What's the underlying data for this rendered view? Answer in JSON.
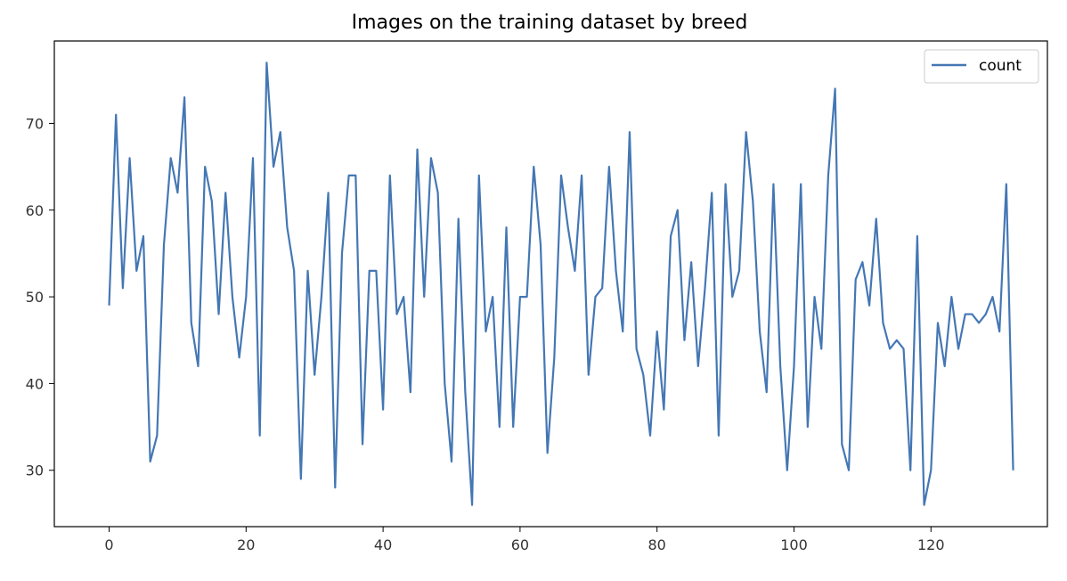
{
  "chart_data": {
    "type": "line",
    "title": "Images on the training dataset by breed",
    "xlabel": "",
    "ylabel": "",
    "xlim": [
      -8,
      137
    ],
    "ylim": [
      23.5,
      79.5
    ],
    "xticks": [
      0,
      20,
      40,
      60,
      80,
      100,
      120
    ],
    "yticks": [
      30,
      40,
      50,
      60,
      70
    ],
    "grid": false,
    "legend": "top-right",
    "series": [
      {
        "name": "count",
        "color": "#4477b4",
        "x": [
          0,
          1,
          2,
          3,
          4,
          5,
          6,
          7,
          8,
          9,
          10,
          11,
          12,
          13,
          14,
          15,
          16,
          17,
          18,
          19,
          20,
          21,
          22,
          23,
          24,
          25,
          26,
          27,
          28,
          29,
          30,
          31,
          32,
          33,
          34,
          35,
          36,
          37,
          38,
          39,
          40,
          41,
          42,
          43,
          44,
          45,
          46,
          47,
          48,
          49,
          50,
          51,
          52,
          53,
          54,
          55,
          56,
          57,
          58,
          59,
          60,
          61,
          62,
          63,
          64,
          65,
          66,
          67,
          68,
          69,
          70,
          71,
          72,
          73,
          74,
          75,
          76,
          77,
          78,
          79,
          80,
          81,
          82,
          83,
          84,
          85,
          86,
          87,
          88,
          89,
          90,
          91,
          92,
          93,
          94,
          95,
          96,
          97,
          98,
          99,
          100,
          101,
          102,
          103,
          104,
          105,
          106,
          107,
          108,
          109,
          110,
          111,
          112,
          113,
          114,
          115,
          116,
          117,
          118,
          119,
          120,
          121,
          122,
          123,
          124,
          125,
          126,
          127,
          128,
          129,
          130,
          131,
          132
        ],
        "values": [
          49,
          71,
          51,
          66,
          53,
          57,
          31,
          34,
          56,
          66,
          62,
          73,
          47,
          42,
          65,
          61,
          48,
          62,
          50,
          43,
          50,
          66,
          34,
          77,
          65,
          69,
          58,
          53,
          29,
          53,
          41,
          50,
          62,
          28,
          55,
          64,
          64,
          33,
          53,
          53,
          37,
          64,
          48,
          50,
          39,
          67,
          50,
          66,
          62,
          40,
          31,
          59,
          39,
          26,
          64,
          46,
          50,
          35,
          58,
          35,
          50,
          50,
          65,
          56,
          32,
          43,
          64,
          58,
          53,
          64,
          41,
          50,
          51,
          65,
          53,
          46,
          69,
          44,
          41,
          34,
          46,
          37,
          57,
          60,
          45,
          54,
          42,
          51,
          62,
          34,
          63,
          50,
          53,
          69,
          61,
          46,
          39,
          63,
          42,
          30,
          42,
          63,
          35,
          50,
          44,
          64,
          74,
          33,
          30,
          52,
          54,
          49,
          59,
          47,
          44,
          45,
          44,
          30,
          57,
          26,
          30,
          47,
          42,
          50,
          44,
          48,
          48,
          47,
          48,
          50,
          46,
          63,
          30
        ]
      }
    ]
  }
}
